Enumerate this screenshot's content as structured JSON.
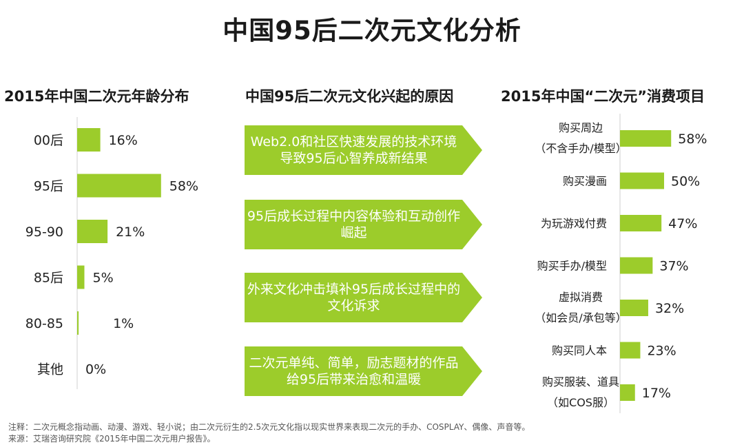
{
  "page": {
    "title": "中国95后二次元文化分析",
    "notes": {
      "note": "注释：二次元概念指动画、动漫、游戏、轻小说；由二次元衍生的2.5次元文化指以现实世界来表现二次元的手办、COSPLAY、偶像、声音等。",
      "source": "来源：艾瑞咨询研究院《2015年中国二次元用户报告》。"
    }
  },
  "colors": {
    "accent": "#9ccc2b",
    "text": "#222222"
  },
  "reasons": {
    "title": "中国95后二次元文化兴起的原因",
    "items": [
      "Web2.0和社区快速发展的技术环境导致95后心智养成新结果",
      "95后成长过程中内容体验和互动创作崛起",
      "外来文化冲击填补95后成长过程中的文化诉求",
      "二次元单纯、简单，励志题材的作品给95后带来治愈和温暖"
    ]
  },
  "chart_data": [
    {
      "type": "bar",
      "orientation": "horizontal",
      "title": "2015年中国二次元年龄分布",
      "categories": [
        "00后",
        "95后",
        "95-90",
        "85后",
        "80-85",
        "其他"
      ],
      "values": [
        16,
        58,
        21,
        5,
        1,
        0
      ],
      "labels": [
        "16%",
        "58%",
        "21%",
        "5%",
        "1%",
        "0%"
      ],
      "xlim": [
        0,
        100
      ],
      "grid": false,
      "legend": "none"
    },
    {
      "type": "bar",
      "orientation": "horizontal",
      "title": "2015年中国“二次元”消费项目",
      "categories": [
        [
          "购买周边",
          "（不含手办/模型）"
        ],
        [
          "购买漫画"
        ],
        [
          "为玩游戏付费"
        ],
        [
          "购买手办/模型"
        ],
        [
          "虚拟消费",
          "（如会员/承包等）"
        ],
        [
          "购买同人本"
        ],
        [
          "购买服装、道具",
          "（如COS服）"
        ]
      ],
      "values": [
        58,
        50,
        47,
        37,
        32,
        23,
        17
      ],
      "labels": [
        "58%",
        "50%",
        "47%",
        "37%",
        "32%",
        "23%",
        "17%"
      ],
      "xlim": [
        0,
        100
      ],
      "grid": false,
      "legend": "none"
    }
  ]
}
